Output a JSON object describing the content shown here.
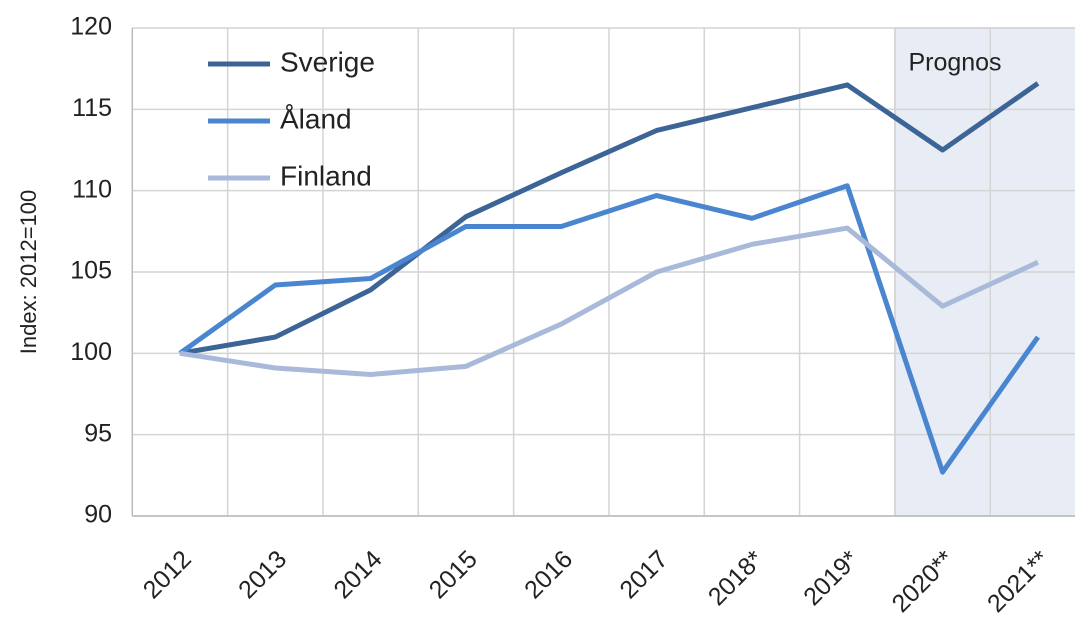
{
  "chart_data": {
    "type": "line",
    "ylabel": "Index: 2012=100",
    "categories": [
      "2012",
      "2013",
      "2014",
      "2015",
      "2016",
      "2017",
      "2018*",
      "2019*",
      "2020**",
      "2021**"
    ],
    "series": [
      {
        "name": "Sverige",
        "color": "#3d6496",
        "values": [
          100,
          101.0,
          103.9,
          108.4,
          111.1,
          113.7,
          115.1,
          116.5,
          112.5,
          116.6
        ]
      },
      {
        "name": "Åland",
        "color": "#4a86d0",
        "values": [
          100,
          104.2,
          104.6,
          107.8,
          107.8,
          109.7,
          108.3,
          110.3,
          92.7,
          101.0
        ]
      },
      {
        "name": "Finland",
        "color": "#a9b9da",
        "values": [
          100,
          99.1,
          98.7,
          99.2,
          101.8,
          105.0,
          106.7,
          107.7,
          102.9,
          105.6
        ]
      }
    ],
    "forecast_region": {
      "label": "Prognos",
      "from": "2020**",
      "color": "#e8edf5"
    },
    "ylim": [
      90,
      120
    ],
    "yticks": [
      90,
      95,
      100,
      105,
      110,
      115,
      120
    ],
    "grid": true,
    "legend": "top-left"
  }
}
